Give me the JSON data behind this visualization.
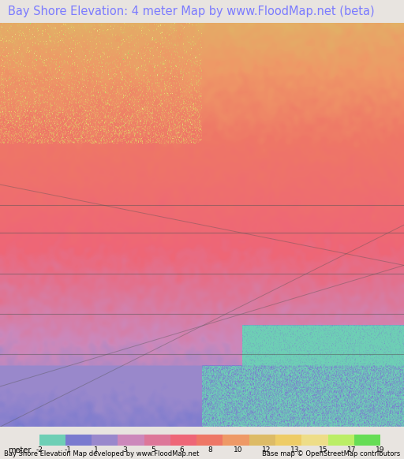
{
  "title": "Bay Shore Elevation: 4 meter Map by www.FloodMap.net (beta)",
  "title_color": "#7b7bff",
  "title_fontsize": 10.5,
  "background_color": "#e8e4e0",
  "map_bg": "#e8d5b0",
  "colorbar_label_bottom": "Bay Shore Elevation Map developed by www.FloodMap.net",
  "colorbar_label_bottom_right": "Base map © OpenStreetMap contributors",
  "colorbar_ticks": [
    -2,
    -1,
    1,
    3,
    5,
    6,
    8,
    10,
    12,
    13,
    15,
    17,
    19
  ],
  "colorbar_tick_label": "meter",
  "colorbar_colors": [
    "#6ecfb5",
    "#7a7acf",
    "#9988cc",
    "#cc88bb",
    "#dd7799",
    "#ee6677",
    "#ee7766",
    "#ee9966",
    "#ddbb66",
    "#eecc66",
    "#eedd88",
    "#bbee66",
    "#66dd55"
  ],
  "map_colors_scheme": "elevation_heatmap",
  "figsize": [
    5.12,
    5.82
  ],
  "dpi": 100
}
